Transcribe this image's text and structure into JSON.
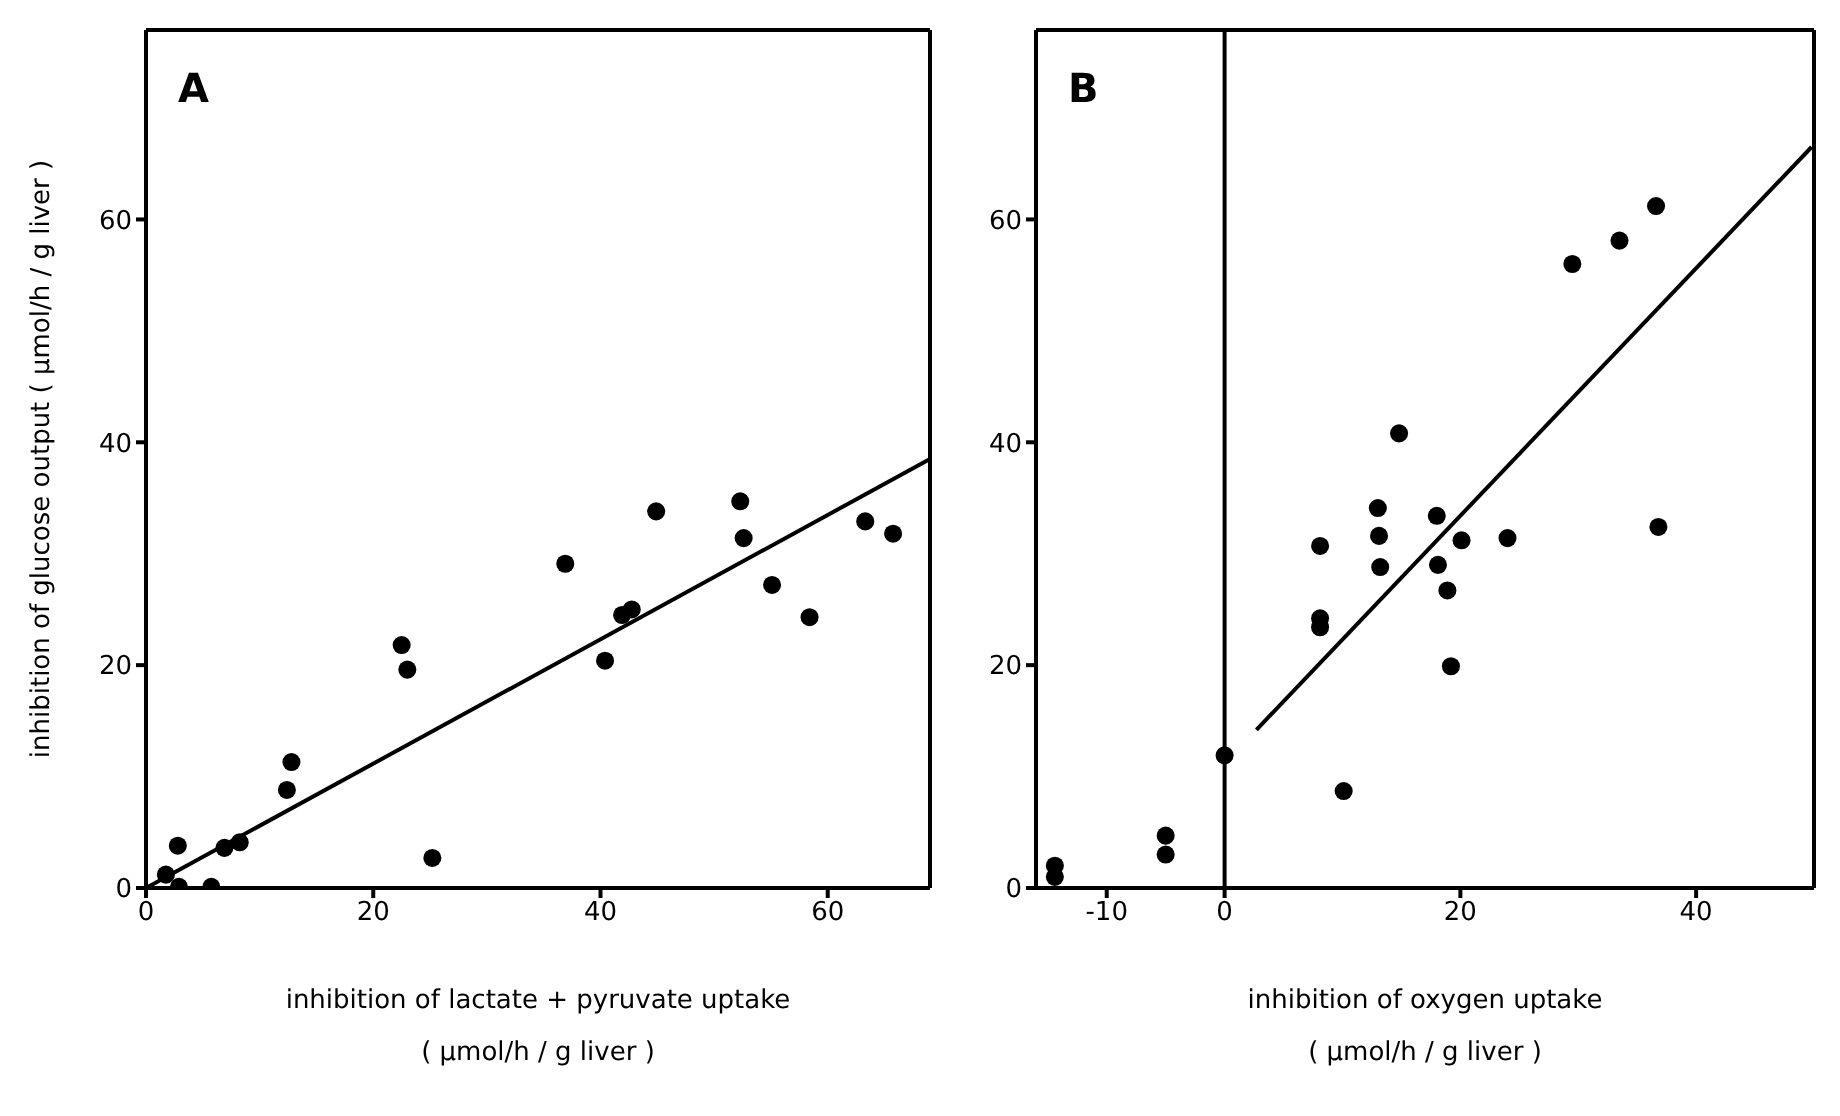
{
  "chart_data": [
    {
      "type": "scatter",
      "xlabel": "inhibition of lactate + pyruvate uptake\n( μmol/h / g liver )",
      "ylabel": "inhibition of glucose output   ( μmol/h / g liver )",
      "annotations": [
        "A"
      ],
      "xlim": [
        0,
        69
      ],
      "ylim": [
        0,
        77
      ],
      "xticks": [
        0,
        20,
        40,
        60
      ],
      "yticks": [
        0,
        20,
        40,
        60
      ],
      "series": [
        {
          "color": "#000000",
          "marker": "circle",
          "x": [
            1.75,
            2.8,
            2.9,
            5.75,
            6.9,
            8.25,
            12.4,
            12.8,
            22.5,
            23,
            25.2,
            36.9,
            40.4,
            41.9,
            42.75,
            44.9,
            52.3,
            52.6,
            55.1,
            58.4,
            63.3,
            65.75
          ],
          "values": [
            1.2,
            3.8,
            0.1,
            0.1,
            3.6,
            4.1,
            8.8,
            11.3,
            21.8,
            19.6,
            2.7,
            29.1,
            20.4,
            24.5,
            25,
            33.8,
            34.7,
            31.4,
            27.2,
            24.3,
            32.9,
            31.8
          ]
        },
        {
          "type": "line",
          "color": "#000000",
          "marker": "none",
          "x": [
            0,
            69
          ],
          "values": [
            0,
            38.5
          ],
          "line_style": "solid"
        }
      ]
    },
    {
      "type": "scatter",
      "xlabel": "inhibition of oxygen uptake\n( μmol/h / g liver )",
      "annotations": [
        "B"
      ],
      "xlim": [
        -16,
        50
      ],
      "ylim": [
        0,
        77
      ],
      "xticks": [
        -10,
        0,
        20,
        40
      ],
      "yticks": [
        0,
        20,
        40,
        60
      ],
      "ref_lines": [
        {
          "axis": "x",
          "value": 0,
          "color": "#000000"
        }
      ],
      "series": [
        {
          "color": "#000000",
          "marker": "circle",
          "x": [
            -14.4,
            -14.4,
            -5,
            -5,
            0,
            8.1,
            8.1,
            8.1,
            10.1,
            13,
            13.1,
            13.2,
            14.8,
            18,
            18.1,
            18.9,
            19.2,
            20.1,
            24,
            29.5,
            33.5,
            36.6,
            36.8
          ],
          "values": [
            2.0,
            1.0,
            4.7,
            3.0,
            11.9,
            30.7,
            24.2,
            23.4,
            8.7,
            34.1,
            31.6,
            28.8,
            40.8,
            33.4,
            29.0,
            26.7,
            19.9,
            31.2,
            31.4,
            56,
            58.1,
            61.2,
            32.4
          ]
        },
        {
          "type": "line",
          "color": "#000000",
          "marker": "none",
          "x": [
            2.7,
            49.8
          ],
          "values": [
            14.2,
            66.5
          ],
          "line_style": "solid"
        }
      ]
    }
  ]
}
